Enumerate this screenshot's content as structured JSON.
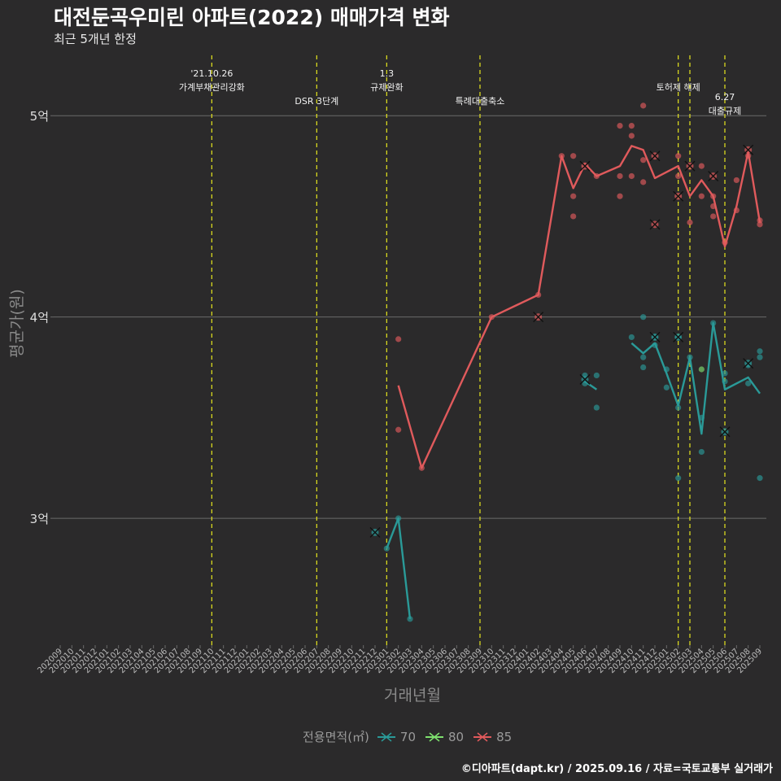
{
  "chart_data": {
    "type": "line",
    "title": "대전둔곡우미린 아파트(2022) 매매가격 변화",
    "subtitle": "최근 5개년 한정",
    "xlabel": "거래년월",
    "ylabel": "평균가(원)",
    "caption": "©디아파트(dapt.kr) / 2025.09.16 / 자료=국토교통부 실거래가",
    "legend_title": "전용면적(㎡)",
    "ylim": [
      2.37,
      5.3
    ],
    "y_ticks": [
      3,
      4,
      5
    ],
    "y_tick_labels": [
      "3억",
      "4억",
      "5억"
    ],
    "x_ticks": [
      "202009",
      "202010",
      "202011",
      "202012",
      "202101",
      "202102",
      "202103",
      "202104",
      "202105",
      "202106",
      "202107",
      "202108",
      "202109",
      "202110",
      "202111",
      "202112",
      "202201",
      "202202",
      "202203",
      "202204",
      "202205",
      "202206",
      "202207",
      "202208",
      "202209",
      "202210",
      "202211",
      "202212",
      "202301",
      "202302",
      "202303",
      "202304",
      "202305",
      "202306",
      "202307",
      "202308",
      "202309",
      "202310",
      "202311",
      "202312",
      "202401",
      "202402",
      "202403",
      "202404",
      "202405",
      "202406",
      "202407",
      "202408",
      "202409",
      "202410",
      "202411",
      "202412",
      "202501",
      "202502",
      "202503",
      "202504",
      "202505",
      "202506",
      "202507",
      "202508",
      "202509"
    ],
    "events": [
      {
        "x": "202110",
        "label": "'21.10.26\n가계부채관리강화",
        "row": 0
      },
      {
        "x": "202207",
        "label": "DSR 3단계",
        "row": 2
      },
      {
        "x": "202301",
        "label": "1.3\n규제완화",
        "row": 0
      },
      {
        "x": "202309",
        "label": "특례대출축소",
        "row": 2
      },
      {
        "x": "202502",
        "label": "토허제 해제",
        "row": 1
      },
      {
        "x": "202503",
        "label": "",
        "row": 1
      },
      {
        "x": "202506",
        "label": "6.27\n대출규제",
        "row": 1.7
      }
    ],
    "series": [
      {
        "name": "70",
        "color": "#2a9a98",
        "line": [
          {
            "x": "202301",
            "y": 2.85
          },
          {
            "x": "202302",
            "y": 3.0
          },
          {
            "x": "202303",
            "y": 2.5
          },
          null,
          {
            "x": "202406",
            "y": 3.68
          },
          {
            "x": "202407",
            "y": 3.64
          },
          null,
          {
            "x": "202410",
            "y": 3.87
          },
          {
            "x": "202411",
            "y": 3.82
          },
          {
            "x": "202412",
            "y": 3.87
          },
          {
            "x": "202501",
            "y": 3.72
          },
          {
            "x": "202502",
            "y": 3.56
          },
          {
            "x": "202503",
            "y": 3.8
          },
          {
            "x": "202504",
            "y": 3.42
          },
          {
            "x": "202505",
            "y": 3.97
          },
          {
            "x": "202506",
            "y": 3.64
          },
          {
            "x": "202508",
            "y": 3.7
          },
          {
            "x": "202509",
            "y": 3.62
          }
        ],
        "points": [
          {
            "x": "202301",
            "y": 2.85
          },
          {
            "x": "202302",
            "y": 3.0
          },
          {
            "x": "202303",
            "y": 2.5
          },
          {
            "x": "202406",
            "y": 3.71
          },
          {
            "x": "202406",
            "y": 3.67
          },
          {
            "x": "202407",
            "y": 3.71
          },
          {
            "x": "202407",
            "y": 3.55
          },
          {
            "x": "202410",
            "y": 3.9
          },
          {
            "x": "202411",
            "y": 4.0
          },
          {
            "x": "202411",
            "y": 3.8
          },
          {
            "x": "202411",
            "y": 3.75
          },
          {
            "x": "202412",
            "y": 3.9
          },
          {
            "x": "202412",
            "y": 3.86
          },
          {
            "x": "202501",
            "y": 3.74
          },
          {
            "x": "202501",
            "y": 3.65
          },
          {
            "x": "202502",
            "y": 3.9
          },
          {
            "x": "202502",
            "y": 3.55
          },
          {
            "x": "202502",
            "y": 3.2
          },
          {
            "x": "202503",
            "y": 3.8
          },
          {
            "x": "202504",
            "y": 3.5
          },
          {
            "x": "202504",
            "y": 3.33
          },
          {
            "x": "202505",
            "y": 3.97
          },
          {
            "x": "202506",
            "y": 3.72
          },
          {
            "x": "202506",
            "y": 3.68
          },
          {
            "x": "202508",
            "y": 3.76
          },
          {
            "x": "202508",
            "y": 3.67
          },
          {
            "x": "202509",
            "y": 3.83
          },
          {
            "x": "202509",
            "y": 3.8
          },
          {
            "x": "202509",
            "y": 3.2
          }
        ],
        "crosses": [
          {
            "x": "202212",
            "y": 2.93
          },
          {
            "x": "202406",
            "y": 3.69
          },
          {
            "x": "202412",
            "y": 3.9
          },
          {
            "x": "202502",
            "y": 3.9
          },
          {
            "x": "202506",
            "y": 3.43
          },
          {
            "x": "202508",
            "y": 3.77
          }
        ]
      },
      {
        "name": "80",
        "color": "#7ee06e",
        "line": [],
        "points": [
          {
            "x": "202504",
            "y": 3.74
          }
        ],
        "crosses": []
      },
      {
        "name": "85",
        "color": "#e05a5c",
        "line": [
          {
            "x": "202302",
            "y": 3.66
          },
          {
            "x": "202304",
            "y": 3.25
          },
          {
            "x": "202310",
            "y": 4.0
          },
          {
            "x": "202402",
            "y": 4.11
          },
          {
            "x": "202404",
            "y": 4.8
          },
          {
            "x": "202405",
            "y": 4.64
          },
          {
            "x": "202406",
            "y": 4.76
          },
          {
            "x": "202407",
            "y": 4.7
          },
          {
            "x": "202409",
            "y": 4.75
          },
          {
            "x": "202410",
            "y": 4.85
          },
          {
            "x": "202411",
            "y": 4.83
          },
          {
            "x": "202412",
            "y": 4.69
          },
          {
            "x": "202502",
            "y": 4.75
          },
          {
            "x": "202503",
            "y": 4.6
          },
          {
            "x": "202504",
            "y": 4.68
          },
          {
            "x": "202505",
            "y": 4.6
          },
          {
            "x": "202506",
            "y": 4.35
          },
          {
            "x": "202507",
            "y": 4.55
          },
          {
            "x": "202508",
            "y": 4.82
          },
          {
            "x": "202509",
            "y": 4.47
          }
        ],
        "points": [
          {
            "x": "202302",
            "y": 3.89
          },
          {
            "x": "202302",
            "y": 3.44
          },
          {
            "x": "202304",
            "y": 3.25
          },
          {
            "x": "202310",
            "y": 4.0
          },
          {
            "x": "202402",
            "y": 4.11
          },
          {
            "x": "202404",
            "y": 4.8
          },
          {
            "x": "202405",
            "y": 4.8
          },
          {
            "x": "202405",
            "y": 4.6
          },
          {
            "x": "202405",
            "y": 4.5
          },
          {
            "x": "202407",
            "y": 4.7
          },
          {
            "x": "202409",
            "y": 4.95
          },
          {
            "x": "202409",
            "y": 4.7
          },
          {
            "x": "202409",
            "y": 4.6
          },
          {
            "x": "202410",
            "y": 4.95
          },
          {
            "x": "202410",
            "y": 4.9
          },
          {
            "x": "202410",
            "y": 4.7
          },
          {
            "x": "202411",
            "y": 5.05
          },
          {
            "x": "202411",
            "y": 4.78
          },
          {
            "x": "202411",
            "y": 4.67
          },
          {
            "x": "202502",
            "y": 4.8
          },
          {
            "x": "202502",
            "y": 4.7
          },
          {
            "x": "202503",
            "y": 4.47
          },
          {
            "x": "202504",
            "y": 4.75
          },
          {
            "x": "202504",
            "y": 4.6
          },
          {
            "x": "202505",
            "y": 4.6
          },
          {
            "x": "202505",
            "y": 4.55
          },
          {
            "x": "202505",
            "y": 4.5
          },
          {
            "x": "202506",
            "y": 4.37
          },
          {
            "x": "202507",
            "y": 4.68
          },
          {
            "x": "202507",
            "y": 4.53
          },
          {
            "x": "202508",
            "y": 4.8
          },
          {
            "x": "202509",
            "y": 4.48
          },
          {
            "x": "202509",
            "y": 4.46
          }
        ],
        "crosses": [
          {
            "x": "202402",
            "y": 4.0
          },
          {
            "x": "202406",
            "y": 4.75
          },
          {
            "x": "202412",
            "y": 4.8
          },
          {
            "x": "202412",
            "y": 4.46
          },
          {
            "x": "202502",
            "y": 4.6
          },
          {
            "x": "202503",
            "y": 4.75
          },
          {
            "x": "202505",
            "y": 4.7
          },
          {
            "x": "202508",
            "y": 4.83
          }
        ]
      }
    ]
  }
}
